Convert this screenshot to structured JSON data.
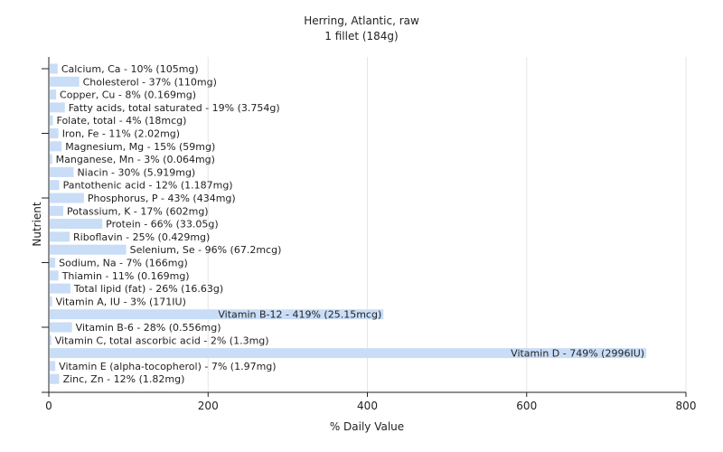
{
  "chart_data": {
    "type": "bar",
    "orientation": "horizontal",
    "title": "Herring, Atlantic, raw",
    "subtitle": "1 fillet (184g)",
    "xlabel": "% Daily Value",
    "ylabel": "Nutrient",
    "xlim": [
      0,
      800
    ],
    "xticks": [
      0,
      200,
      400,
      600,
      800
    ],
    "grid": true,
    "bar_color": "#c9ddf7",
    "categories": [
      "Calcium, Ca",
      "Cholesterol",
      "Copper, Cu",
      "Fatty acids, total saturated",
      "Folate, total",
      "Iron, Fe",
      "Magnesium, Mg",
      "Manganese, Mn",
      "Niacin",
      "Pantothenic acid",
      "Phosphorus, P",
      "Potassium, K",
      "Protein",
      "Riboflavin",
      "Selenium, Se",
      "Sodium, Na",
      "Thiamin",
      "Total lipid (fat)",
      "Vitamin A, IU",
      "Vitamin B-12",
      "Vitamin B-6",
      "Vitamin C, total ascorbic acid",
      "Vitamin D",
      "Vitamin E (alpha-tocopherol)",
      "Zinc, Zn"
    ],
    "values": [
      10,
      37,
      8,
      19,
      4,
      11,
      15,
      3,
      30,
      12,
      43,
      17,
      66,
      25,
      96,
      7,
      11,
      26,
      3,
      419,
      28,
      2,
      749,
      7,
      12
    ],
    "labels": [
      "Calcium, Ca - 10% (105mg)",
      "Cholesterol - 37% (110mg)",
      "Copper, Cu - 8% (0.169mg)",
      "Fatty acids, total saturated - 19% (3.754g)",
      "Folate, total - 4% (18mcg)",
      "Iron, Fe - 11% (2.02mg)",
      "Magnesium, Mg - 15% (59mg)",
      "Manganese, Mn - 3% (0.064mg)",
      "Niacin - 30% (5.919mg)",
      "Pantothenic acid - 12% (1.187mg)",
      "Phosphorus, P - 43% (434mg)",
      "Potassium, K - 17% (602mg)",
      "Protein - 66% (33.05g)",
      "Riboflavin - 25% (0.429mg)",
      "Selenium, Se - 96% (67.2mcg)",
      "Sodium, Na - 7% (166mg)",
      "Thiamin - 11% (0.169mg)",
      "Total lipid (fat) - 26% (16.63g)",
      "Vitamin A, IU - 3% (171IU)",
      "Vitamin B-12 - 419% (25.15mcg)",
      "Vitamin B-6 - 28% (0.556mg)",
      "Vitamin C, total ascorbic acid - 2% (1.3mg)",
      "Vitamin D - 749% (2996IU)",
      "Vitamin E (alpha-tocopherol) - 7% (1.97mg)",
      "Zinc, Zn - 12% (1.82mg)"
    ]
  }
}
